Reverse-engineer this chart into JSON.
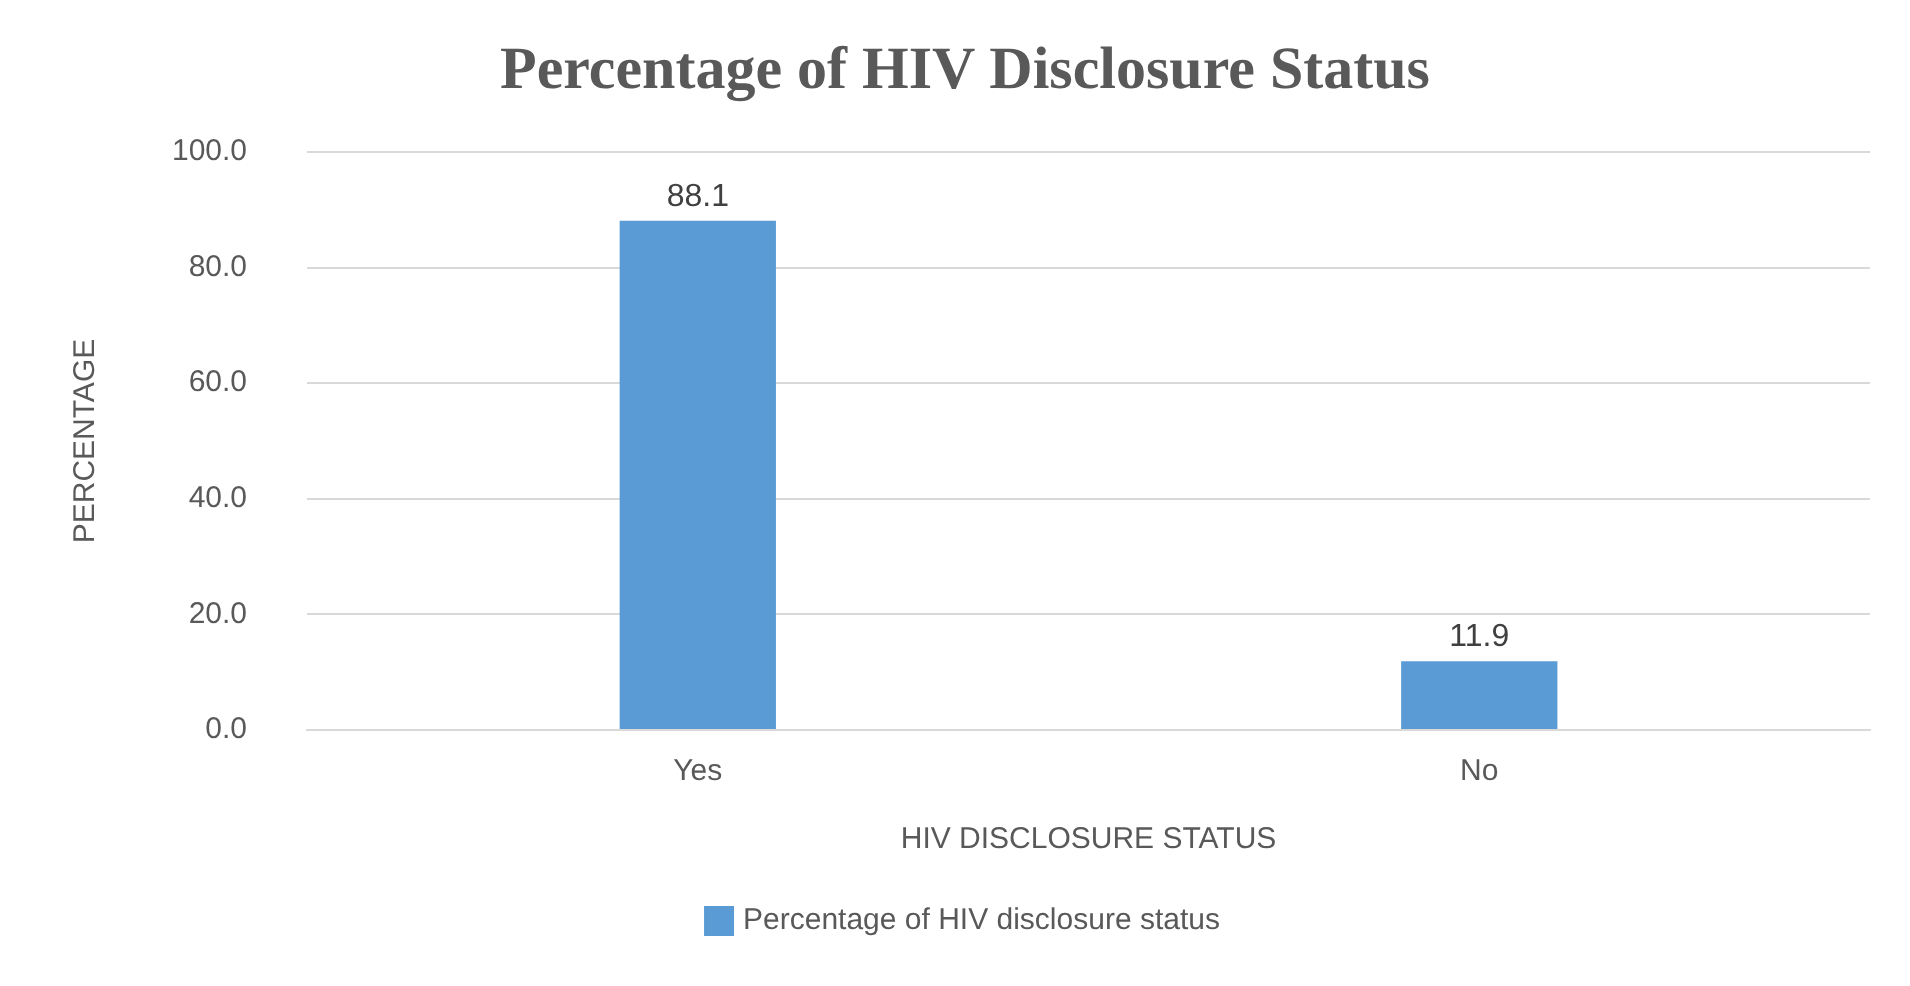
{
  "chart_data": {
    "type": "bar",
    "title": "Percentage of HIV Disclosure Status",
    "xlabel": "HIV DISCLOSURE STATUS",
    "ylabel": "PERCENTAGE",
    "categories": [
      "Yes",
      "No"
    ],
    "series": [
      {
        "name": "Percentage of HIV disclosure status",
        "color": "#5b9bd5",
        "values": [
          88.1,
          11.9
        ]
      }
    ],
    "ylim": [
      0,
      100
    ],
    "yticks": [
      {
        "value": 0,
        "label": "0.0"
      },
      {
        "value": 20,
        "label": "20.0"
      },
      {
        "value": 40,
        "label": "40.0"
      },
      {
        "value": 60,
        "label": "60.0"
      },
      {
        "value": 80,
        "label": "80.0"
      },
      {
        "value": 100,
        "label": "100.0"
      }
    ],
    "grid": "y",
    "legend": "bottom",
    "data_labels": true
  }
}
